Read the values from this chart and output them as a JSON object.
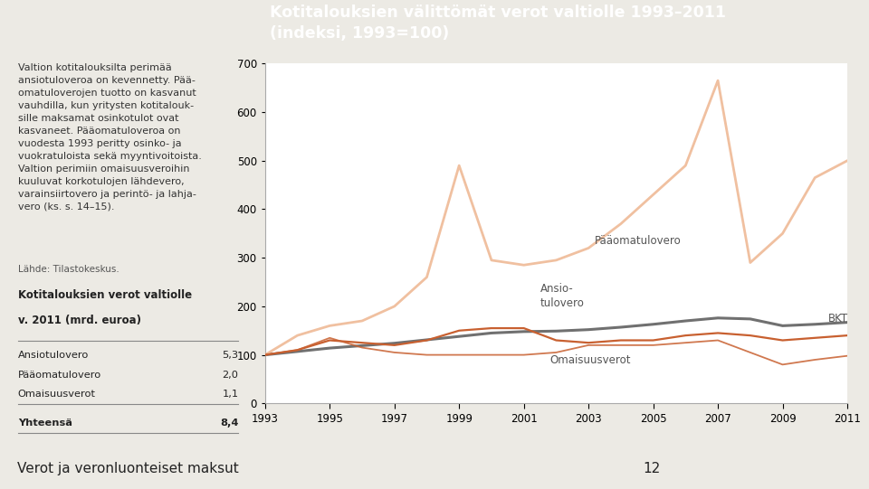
{
  "title_line1": "Kotitalouksien välittömät verot valtiolle 1993–2011",
  "title_line2": "(indeksi, 1993=100)",
  "title_bg_color": "#E8825A",
  "title_text_color": "#FFFFFF",
  "left_panel_bg": "#ECEAE4",
  "chart_bg": "#FFFFFF",
  "years": [
    1993,
    1994,
    1995,
    1996,
    1997,
    1998,
    1999,
    2000,
    2001,
    2002,
    2003,
    2004,
    2005,
    2006,
    2007,
    2008,
    2009,
    2010,
    2011
  ],
  "paaomatulovero": [
    100,
    140,
    160,
    170,
    200,
    260,
    490,
    295,
    285,
    295,
    320,
    370,
    430,
    490,
    665,
    290,
    350,
    465,
    500
  ],
  "ansiotulovero": [
    100,
    110,
    130,
    125,
    120,
    130,
    150,
    155,
    155,
    130,
    125,
    130,
    130,
    140,
    145,
    140,
    130,
    135,
    140
  ],
  "omaisuusverot": [
    100,
    110,
    135,
    115,
    105,
    100,
    100,
    100,
    100,
    105,
    120,
    120,
    120,
    125,
    130,
    105,
    80,
    90,
    98
  ],
  "bkt": [
    100,
    107,
    114,
    119,
    124,
    131,
    138,
    145,
    148,
    149,
    152,
    157,
    163,
    170,
    176,
    174,
    160,
    163,
    167
  ],
  "paaomatulovero_color": "#F0C0A0",
  "ansiotulovero_color": "#C86030",
  "omaisuusverot_color": "#C86030",
  "bkt_color": "#707070",
  "ylim": [
    0,
    700
  ],
  "yticks": [
    0,
    100,
    200,
    300,
    400,
    500,
    600,
    700
  ],
  "left_text_body": "Valtion kotitalouksilta perimää\nansiotuloveroa on kevennetty. Pää-\nomatuloverojen tuotto on kasvanut\nvauhdilla, kun yritysten kotitalouk-\nsille maksamat osinkotulot ovat\nkasvaneet. Pääomatuloveroa on\nvuodesta 1993 peritty osinko- ja\nvuokratuloista sekä myyntivoitoista.\nValtion perimiin omaisuusveroihin\nkuuluvat korkotulojen lähdevero,\nvarainsiirtovero ja perintö- ja lahja-\nvero (ks. s. 14–15).",
  "source_text": "Lähde: Tilastokeskus.",
  "table_title_line1": "Kotitalouksien verot valtiolle",
  "table_title_line2": "v. 2011 (mrd. euroa)",
  "table_rows": [
    [
      "Ansiotulovero",
      "5,3"
    ],
    [
      "Pääomatulovero",
      "2,0"
    ],
    [
      "Omaisuusverot",
      "1,1"
    ],
    [
      "Yhteensä",
      "8,4"
    ]
  ],
  "footer_text": "Verot ja veronluonteiset maksut",
  "footer_page": "12"
}
